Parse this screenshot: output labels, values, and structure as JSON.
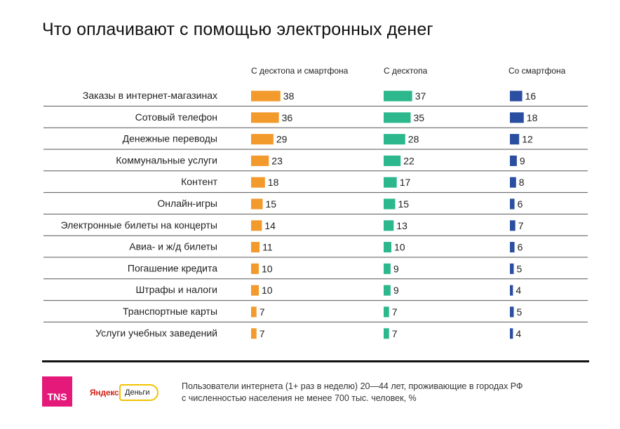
{
  "title": "Что оплачивают с помощью электронных денег",
  "columns": [
    {
      "name": "С десктопа и смартфона",
      "color": "#f39a2d"
    },
    {
      "name": "С десктопа",
      "color": "#2cb88c"
    },
    {
      "name": "Со смартфона",
      "color": "#2b4fa0"
    }
  ],
  "chart_data": {
    "type": "bar",
    "title": "Что оплачивают с помощью электронных денег",
    "unit": "%",
    "categories": [
      "Заказы в интернет-магазинах",
      "Сотовый телефон",
      "Денежные переводы",
      "Коммунальные услуги",
      "Контент",
      "Онлайн-игры",
      "Электронные билеты на концерты",
      "Авиа- и ж/д билеты",
      "Погашение кредита",
      "Штрафы и налоги",
      "Транспортные карты",
      "Услуги учебных заведений"
    ],
    "series": [
      {
        "name": "С десктопа и смартфона",
        "values": [
          38,
          36,
          29,
          23,
          18,
          15,
          14,
          11,
          10,
          10,
          7,
          7
        ]
      },
      {
        "name": "С десктопа",
        "values": [
          37,
          35,
          28,
          22,
          17,
          15,
          13,
          10,
          9,
          9,
          7,
          7
        ]
      },
      {
        "name": "Со смартфона",
        "values": [
          16,
          18,
          12,
          9,
          8,
          6,
          7,
          6,
          5,
          4,
          5,
          4
        ]
      }
    ]
  },
  "footer": {
    "tns_logo": "TNS",
    "yandex_logo": "Яндекс",
    "dengi_label": "Деньги",
    "note_line1": "Пользователи интернета (1+ раз в неделю) 20—44 лет, проживающие в городах РФ",
    "note_line2": "с численностью населения не менее 700 тыс. человек, %"
  }
}
